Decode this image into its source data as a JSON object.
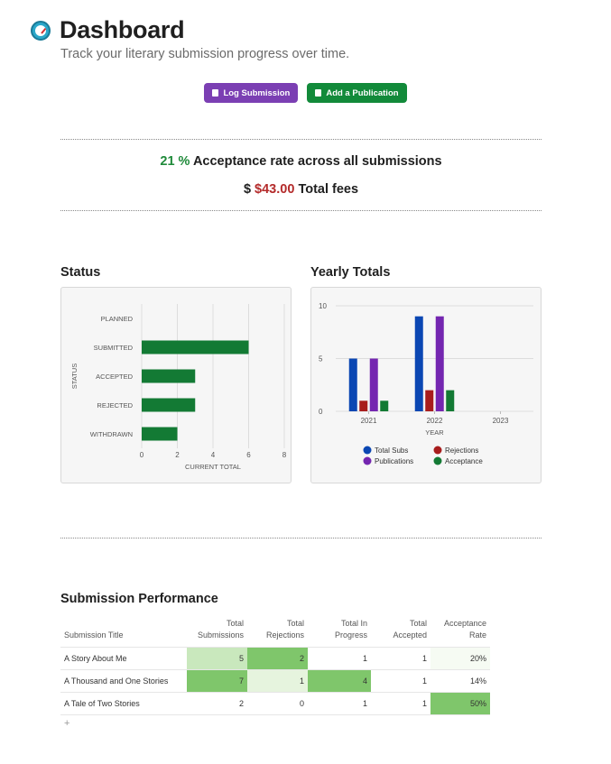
{
  "header": {
    "icon": "dashboard-gauge-icon",
    "title": "Dashboard",
    "subtitle": "Track your literary submission progress over time."
  },
  "buttons": {
    "log_submission": "Log Submission",
    "add_publication": "Add a Publication"
  },
  "stats": {
    "acceptance_value": "21 %",
    "acceptance_label": "Acceptance rate across all submissions",
    "fees_prefix": "$",
    "fees_value": "$43.00",
    "fees_label": "Total fees"
  },
  "status_section": {
    "title": "Status"
  },
  "yearly_section": {
    "title": "Yearly Totals"
  },
  "performance_section": {
    "title": "Submission Performance"
  },
  "chart_data": [
    {
      "type": "bar",
      "orientation": "horizontal",
      "categories": [
        "PLANNED",
        "SUBMITTED",
        "ACCEPTED",
        "REJECTED",
        "WITHDRAWN"
      ],
      "values": [
        0,
        6,
        3,
        3,
        2
      ],
      "xlabel": "CURRENT TOTAL",
      "ylabel": "STATUS",
      "xlim": [
        0,
        8
      ],
      "xticks": [
        0,
        2,
        4,
        6,
        8
      ],
      "grid": true,
      "color": "#137a34"
    },
    {
      "type": "bar",
      "categories": [
        "2021",
        "2022",
        "2023"
      ],
      "series": [
        {
          "name": "Total Subs",
          "values": [
            5,
            9,
            0
          ],
          "color": "#0b47b3"
        },
        {
          "name": "Rejections",
          "values": [
            1,
            2,
            0
          ],
          "color": "#a81d1d"
        },
        {
          "name": "Publications",
          "values": [
            5,
            9,
            0
          ],
          "color": "#7426b0"
        },
        {
          "name": "Acceptance",
          "values": [
            1,
            2,
            0
          ],
          "color": "#137a34"
        }
      ],
      "xlabel": "YEAR",
      "ylabel": "",
      "ylim": [
        0,
        10
      ],
      "yticks": [
        0,
        5,
        10
      ],
      "legend": "bottom",
      "grid": true
    }
  ],
  "table": {
    "headers": [
      [
        "Submission Title"
      ],
      [
        "Total",
        "Submissions"
      ],
      [
        "Total",
        "Rejections"
      ],
      [
        "Total In",
        "Progress"
      ],
      [
        "Total",
        "Accepted"
      ],
      [
        "Acceptance",
        "Rate"
      ]
    ],
    "rows": [
      {
        "title": "A Story About Me",
        "subs": "5",
        "rej": "2",
        "prog": "1",
        "acc": "1",
        "rate": "20%"
      },
      {
        "title": "A Thousand and One Stories",
        "subs": "7",
        "rej": "1",
        "prog": "4",
        "acc": "1",
        "rate": "14%"
      },
      {
        "title": "A Tale of Two Stories",
        "subs": "2",
        "rej": "0",
        "prog": "1",
        "acc": "1",
        "rate": "50%"
      }
    ],
    "add_row": "+"
  },
  "colors": {
    "heat_high": "#7fc66b",
    "heat_mid": "#c9e8bd",
    "heat_low": "#e6f4de",
    "heat_faint": "#f6fbf3"
  }
}
